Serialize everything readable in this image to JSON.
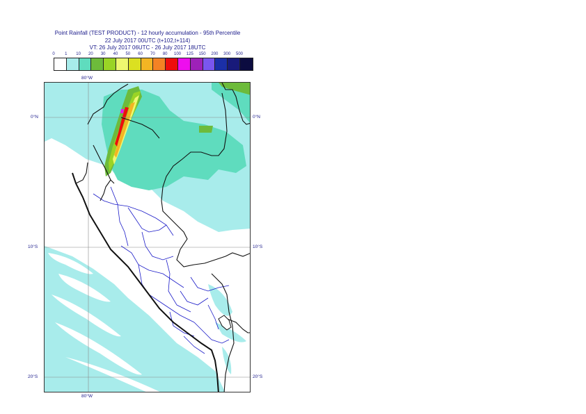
{
  "title": {
    "line1": "Point Rainfall (TEST PRODUCT) - 12 hourly accumulation - 95th Percentile",
    "line2": "22 July 2017 00UTC (t+102,t+114)",
    "line3": "VT: 26 July 2017 06UTC - 26 July 2017 18UTC"
  },
  "legend": {
    "labels": [
      "0",
      "1",
      "10",
      "20",
      "30",
      "40",
      "50",
      "60",
      "70",
      "80",
      "100",
      "125",
      "150",
      "200",
      "300",
      "500"
    ],
    "colors": [
      "#ffffff",
      "#a8eceb",
      "#5fdcbe",
      "#6dbb3b",
      "#9ad425",
      "#eef870",
      "#dbe021",
      "#f3b523",
      "#f48224",
      "#ee0d0d",
      "#ee0eee",
      "#9d21b8",
      "#7a56ee",
      "#1b2fa7",
      "#181a7a",
      "#0c0c40"
    ]
  },
  "axis": {
    "lon_top": "80°W",
    "lon_bottom": "80°W",
    "lat_left": [
      "0°N",
      "10°S",
      "20°S"
    ],
    "lat_right": [
      "0°N",
      "10°S",
      "20°S"
    ]
  }
}
